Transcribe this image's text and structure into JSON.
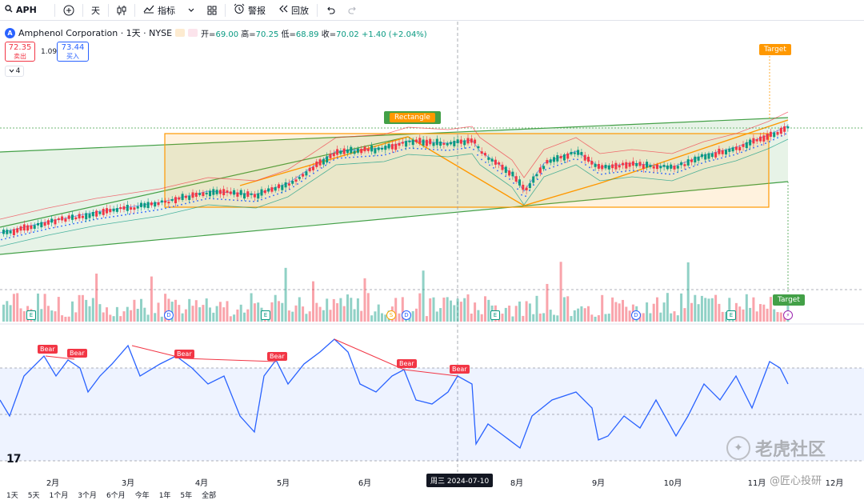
{
  "toolbar": {
    "symbol": "APH",
    "interval": "天",
    "indicators_label": "指标",
    "alert_label": "警报",
    "replay_label": "回放"
  },
  "legend": {
    "logo": "A",
    "title": "Amphenol Corporation · 1天 · NYSE",
    "open_label": "开=",
    "open": "69.00",
    "high_label": "高=",
    "high": "70.25",
    "low_label": "低=",
    "low": "68.89",
    "close_label": "收=",
    "close": "70.02",
    "change": "+1.40 (+2.04%)"
  },
  "trade": {
    "sell_price": "72.35",
    "sell_label": "卖出",
    "spread": "1.09",
    "buy_price": "73.44",
    "buy_label": "买入",
    "collapse_count": "4"
  },
  "drawings": {
    "rectangle_label": "Rectangle",
    "target_label_top": "Target",
    "target_label_bottom": "Target",
    "bear_label": "Bear"
  },
  "events": {
    "earnings": "E",
    "dividend": "D",
    "split": "S",
    "flash": "⚡"
  },
  "x_axis": {
    "ticks": [
      "2月",
      "3月",
      "4月",
      "5月",
      "6月",
      "8月",
      "9月",
      "10月",
      "11月",
      "12月"
    ],
    "cursor_label": "周三 2024-07-10"
  },
  "bottom_bar": {
    "ranges": [
      "1天",
      "5天",
      "1个月",
      "3个月",
      "6个月",
      "今年",
      "1年",
      "5年",
      "全部"
    ]
  },
  "watermark": {
    "brand": "老虎社区",
    "author": "@匠心投研",
    "tv_logo": "17"
  },
  "colors": {
    "up": "#089981",
    "down": "#f23645",
    "rectangle": "#ff9800",
    "channel": "#43a047",
    "rsi": "#2962ff"
  }
}
